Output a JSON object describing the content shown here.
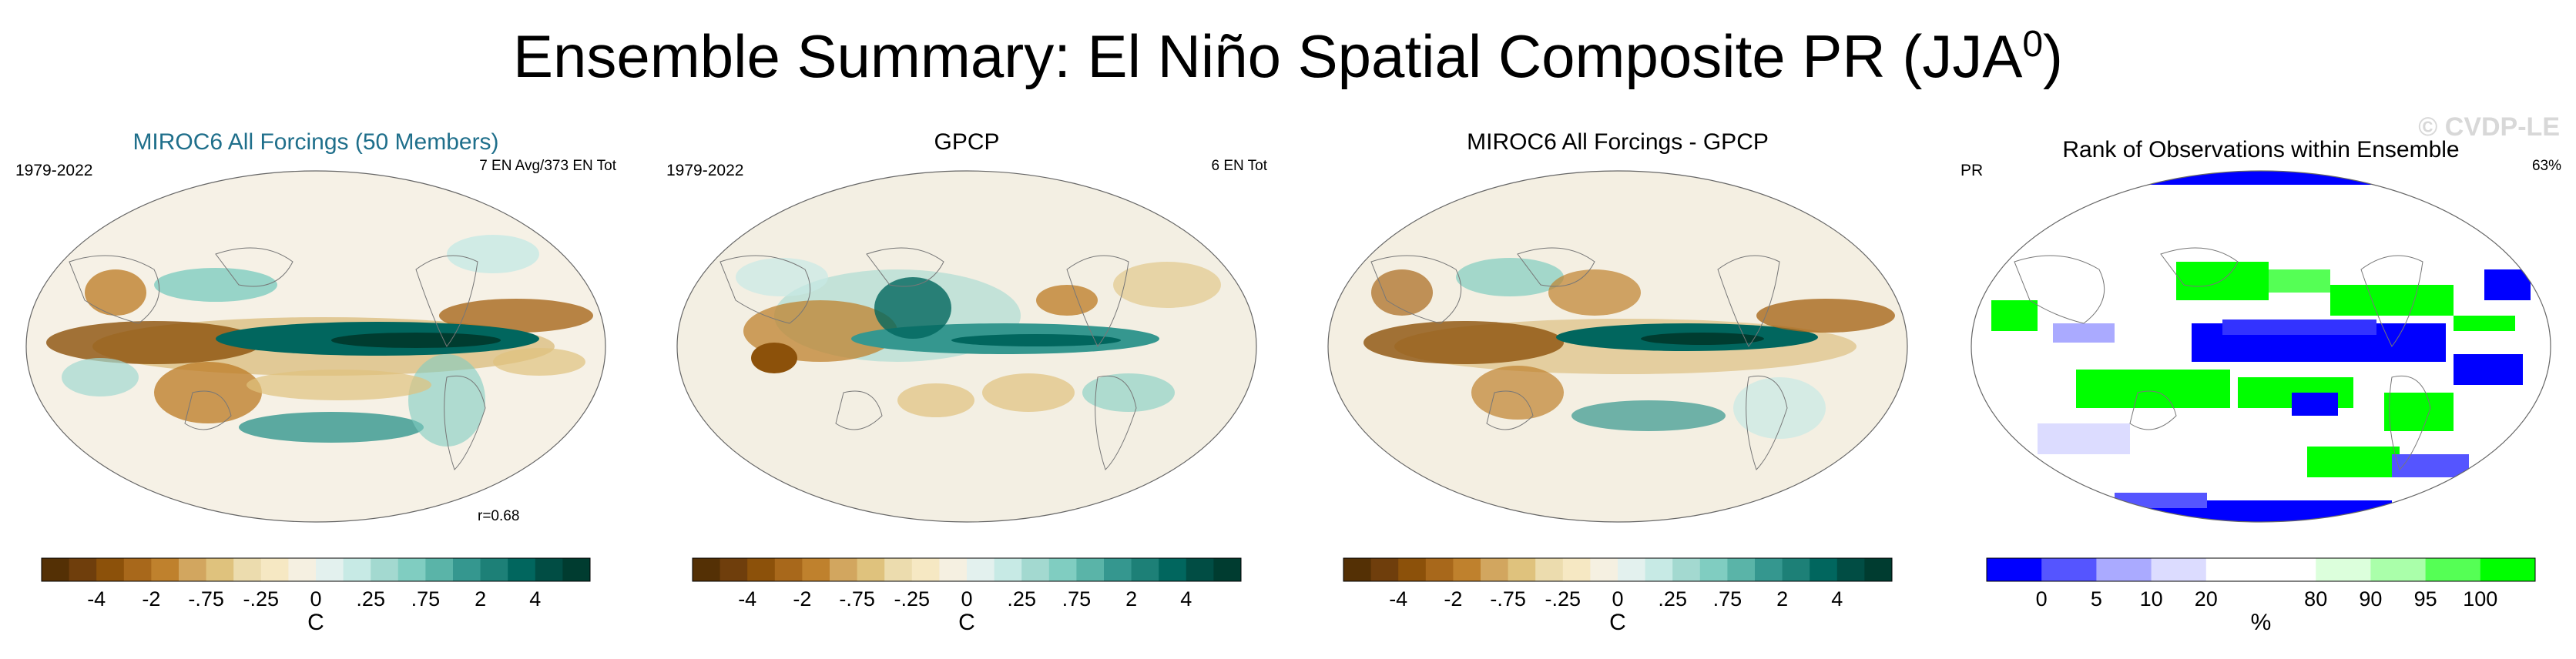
{
  "title": "Ensemble Summary: El Niño Spatial Composite PR (JJA",
  "title_sup": "0",
  "title_close": ")",
  "watermark": "© CVDP-LE",
  "panels": [
    {
      "title": "MIROC6 All Forcings (50 Members)",
      "left_label": "1979-2022",
      "right_label": "7 EN Avg/373 EN Tot",
      "corr": "r=0.68",
      "units": "C",
      "ticks": [
        "-4",
        "-2",
        "-.75",
        "-.25",
        "0",
        ".25",
        ".75",
        "2",
        "4"
      ],
      "colors": [
        "#543005",
        "#6f3e0c",
        "#8c510a",
        "#a8681b",
        "#bf812d",
        "#d2a65f",
        "#dfc27d",
        "#ecdcae",
        "#f6e8c3",
        "#f5f0e1",
        "#e3f1ee",
        "#c7eae5",
        "#a3d9d0",
        "#80cdc1",
        "#5ab4a8",
        "#35978f",
        "#1d8077",
        "#01665e",
        "#014d44",
        "#003c30"
      ],
      "tick_positions": [
        2,
        4,
        6,
        8,
        10,
        12,
        14,
        16,
        18
      ]
    },
    {
      "title": "GPCP",
      "left_label": "1979-2022",
      "right_label": "6 EN Tot",
      "units": "C",
      "ticks": [
        "-4",
        "-2",
        "-.75",
        "-.25",
        "0",
        ".25",
        ".75",
        "2",
        "4"
      ],
      "colors": [
        "#543005",
        "#6f3e0c",
        "#8c510a",
        "#a8681b",
        "#bf812d",
        "#d2a65f",
        "#dfc27d",
        "#ecdcae",
        "#f6e8c3",
        "#f5f0e1",
        "#e3f1ee",
        "#c7eae5",
        "#a3d9d0",
        "#80cdc1",
        "#5ab4a8",
        "#35978f",
        "#1d8077",
        "#01665e",
        "#014d44",
        "#003c30"
      ],
      "tick_positions": [
        2,
        4,
        6,
        8,
        10,
        12,
        14,
        16,
        18
      ]
    },
    {
      "title": "MIROC6 All Forcings - GPCP",
      "units": "C",
      "ticks": [
        "-4",
        "-2",
        "-.75",
        "-.25",
        "0",
        ".25",
        ".75",
        "2",
        "4"
      ],
      "colors": [
        "#543005",
        "#6f3e0c",
        "#8c510a",
        "#a8681b",
        "#bf812d",
        "#d2a65f",
        "#dfc27d",
        "#ecdcae",
        "#f6e8c3",
        "#f5f0e1",
        "#e3f1ee",
        "#c7eae5",
        "#a3d9d0",
        "#80cdc1",
        "#5ab4a8",
        "#35978f",
        "#1d8077",
        "#01665e",
        "#014d44",
        "#003c30"
      ],
      "tick_positions": [
        2,
        4,
        6,
        8,
        10,
        12,
        14,
        16,
        18
      ]
    },
    {
      "title": "Rank of Observations within Ensemble",
      "left_label": "PR",
      "right_label": "63%",
      "units": "%",
      "ticks": [
        "0",
        "5",
        "10",
        "20",
        "80",
        "90",
        "95",
        "100"
      ],
      "colors": [
        "#0000ff",
        "#5555ff",
        "#aaaaff",
        "#dcdcff",
        "#ffffff",
        "#ffffff",
        "#dcffdc",
        "#aaffaa",
        "#55ff55",
        "#00ff00"
      ],
      "tick_positions": [
        1,
        2,
        3,
        4,
        6,
        7,
        8,
        9
      ]
    }
  ]
}
